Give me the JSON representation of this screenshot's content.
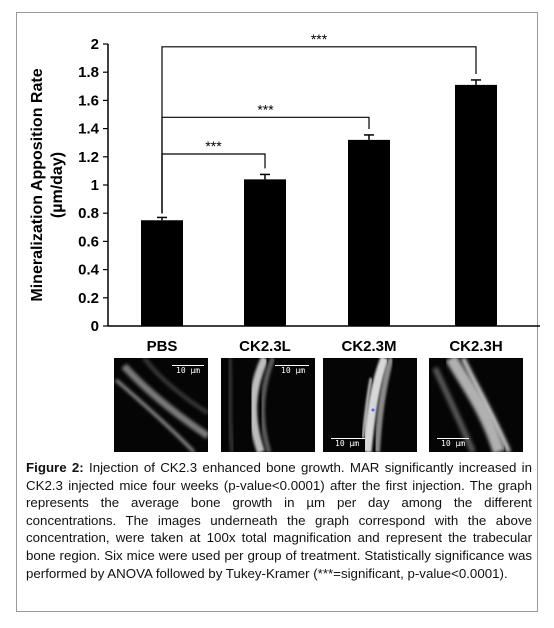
{
  "chart_data": {
    "type": "bar",
    "categories": [
      "PBS",
      "CK2.3L",
      "CK2.3M",
      "CK2.3H"
    ],
    "values": [
      0.75,
      1.04,
      1.32,
      1.71
    ],
    "errors": [
      0.02,
      0.035,
      0.035,
      0.035
    ],
    "ylabel_line1": "Mineralization Apposition Rate",
    "ylabel_line2": "(µm/day)",
    "ylim": [
      0,
      2
    ],
    "yticks": [
      "0",
      "0.2",
      "0.4",
      "0.6",
      "0.8",
      "1",
      "1.2",
      "1.4",
      "1.6",
      "1.8",
      "2"
    ],
    "bar_color": "#000000",
    "significance": [
      {
        "from": 0,
        "to": 1,
        "label": "***",
        "level": 1.22
      },
      {
        "from": 0,
        "to": 2,
        "label": "***",
        "level": 1.48
      },
      {
        "from": 0,
        "to": 3,
        "label": "***",
        "level": 1.98
      }
    ]
  },
  "images": [
    {
      "scale_label": "10 µm",
      "scale_position": "top-right"
    },
    {
      "scale_label": "10 µm",
      "scale_position": "top-right"
    },
    {
      "scale_label": "10 µm",
      "scale_position": "bottom-left"
    },
    {
      "scale_label": "10 µm",
      "scale_position": "bottom-left"
    }
  ],
  "caption": {
    "label": "Figure 2:",
    "text": " Injection of CK2.3 enhanced bone growth. MAR significantly increased in CK2.3 injected mice four weeks (p-value<0.0001) after the first injection. The graph represents the average bone growth in µm per day among the different concentrations. The images underneath the graph correspond with the above concentration, were taken at 100x total magnification and represent the trabecular bone region. Six mice were used per group of treatment. Statistically significance was performed by ANOVA followed by Tukey-Kramer (***=significant, p-value<0.0001)."
  }
}
